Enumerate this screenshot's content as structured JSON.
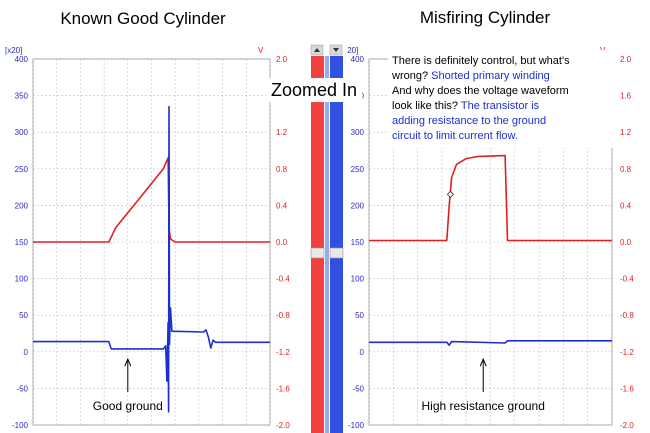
{
  "zoomed_label": "Zoomed In",
  "scrollbar": {
    "left_unit": "[x20]",
    "right_unit": "V"
  },
  "notes": [
    [
      {
        "t": "There is definitely control, but what's",
        "c": "black"
      }
    ],
    [
      {
        "t": "wrong? ",
        "c": "black"
      },
      {
        "t": "Shorted primary winding",
        "c": "blue"
      }
    ],
    [
      {
        "t": "And why does the voltage waveform",
        "c": "black"
      }
    ],
    [
      {
        "t": "look like this? ",
        "c": "black"
      },
      {
        "t": "The transistor is",
        "c": "blue"
      }
    ],
    [
      {
        "t": "adding resistance to the ground",
        "c": "blue"
      }
    ],
    [
      {
        "t": "circuit to limit current flow.",
        "c": "blue"
      }
    ]
  ],
  "colors": {
    "voltage": "#e02020",
    "current": "#1c2fd0",
    "grid": "#c0c0c0",
    "note_blue": "#1c2fd0"
  },
  "chart_data": [
    {
      "type": "line",
      "title": "Known Good Cylinder",
      "left_axis": {
        "unit": "[x20]",
        "ylim": [
          -100,
          400
        ],
        "ticks": [
          -100,
          -50,
          0,
          50,
          100,
          150,
          200,
          250,
          300,
          350,
          400
        ]
      },
      "right_axis": {
        "unit": "V",
        "ylim": [
          -2.0,
          2.0
        ],
        "ticks": [
          "-2.0",
          "-1.6",
          "-1.2",
          "-0.8",
          "-0.4",
          "0.0",
          "0.4",
          "0.8",
          "1.2",
          "1.6",
          "2.0"
        ]
      },
      "xlim": [
        0,
        100
      ],
      "grid": true,
      "annotation": "Good ground",
      "annotation_arrow": {
        "x": 40,
        "y_from": -55,
        "y_to": -10
      },
      "series": [
        {
          "axis": "left",
          "color": "voltage",
          "points": [
            [
              0,
              150
            ],
            [
              32,
              150
            ],
            [
              35,
              170
            ],
            [
              45,
              210
            ],
            [
              55,
              250
            ],
            [
              57,
              265
            ],
            [
              57.4,
              168
            ],
            [
              58,
              154
            ],
            [
              60,
              150
            ],
            [
              100,
              150
            ]
          ]
        },
        {
          "axis": "left",
          "color": "current",
          "points": [
            [
              0,
              14
            ],
            [
              32,
              14
            ],
            [
              33,
              4
            ],
            [
              55,
              4
            ],
            [
              56,
              8
            ],
            [
              56.5,
              -40
            ],
            [
              57,
              40
            ],
            [
              57.2,
              -82
            ],
            [
              57.4,
              335
            ],
            [
              57.6,
              10
            ],
            [
              58,
              60
            ],
            [
              58.6,
              28
            ],
            [
              60,
              28
            ],
            [
              72,
              27
            ],
            [
              73,
              30
            ],
            [
              74,
              20
            ],
            [
              75,
              5
            ],
            [
              76,
              16
            ],
            [
              77,
              13
            ],
            [
              100,
              13
            ]
          ]
        }
      ]
    },
    {
      "type": "line",
      "title": "Misfiring Cylinder",
      "left_axis": {
        "unit": "[x20]",
        "ylim": [
          -100,
          400
        ],
        "ticks": [
          -100,
          -50,
          0,
          50,
          100,
          150,
          200,
          250,
          300,
          350,
          400
        ]
      },
      "right_axis": {
        "unit": "V",
        "ylim": [
          -2.0,
          2.0
        ],
        "ticks": [
          "-2.0",
          "-1.6",
          "-1.2",
          "-0.8",
          "-0.4",
          "0.0",
          "0.4",
          "0.8",
          "1.2",
          "1.6",
          "2.0"
        ]
      },
      "xlim": [
        0,
        100
      ],
      "grid": true,
      "annotation": "High resistance ground",
      "annotation_arrow": {
        "x": 47,
        "y_from": -55,
        "y_to": -10
      },
      "series": [
        {
          "axis": "left",
          "color": "voltage",
          "points": [
            [
              0,
              152
            ],
            [
              32,
              152
            ],
            [
              33,
              200
            ],
            [
              34,
              238
            ],
            [
              36,
              256
            ],
            [
              40,
              264
            ],
            [
              45,
              267
            ],
            [
              56,
              268
            ],
            [
              57,
              152
            ],
            [
              100,
              152
            ]
          ]
        },
        {
          "axis": "left",
          "color": "current",
          "points": [
            [
              0,
              13
            ],
            [
              32,
              13
            ],
            [
              33,
              9
            ],
            [
              34,
              14
            ],
            [
              56,
              12
            ],
            [
              57,
              15
            ],
            [
              100,
              15
            ]
          ]
        }
      ]
    }
  ]
}
